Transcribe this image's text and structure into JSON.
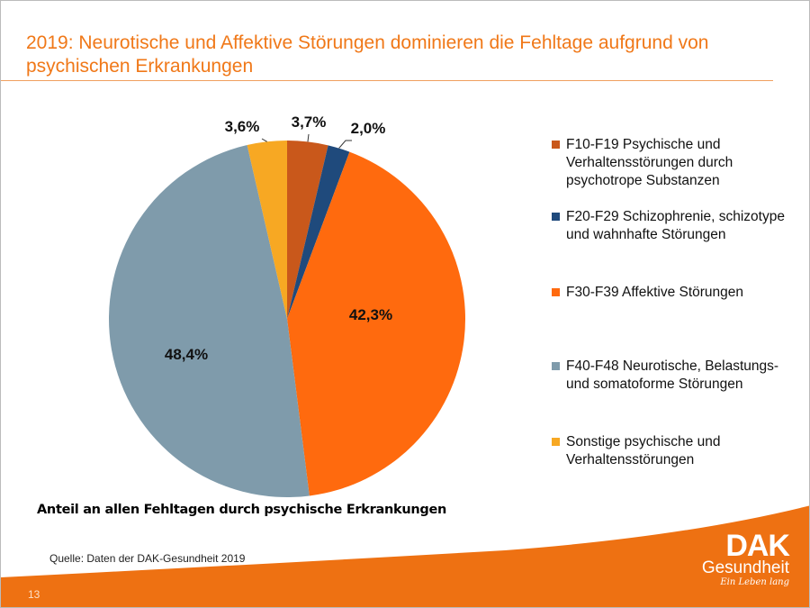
{
  "title": "2019: Neurotische und Affektive Störungen dominieren die Fehltage aufgrund von psychischen Erkrankungen",
  "chart_data": {
    "type": "pie",
    "title": "Anteil an allen Fehltagen durch psychische Erkrankungen",
    "legend_position": "right",
    "slices": [
      {
        "name": "F10-F19 Psychische und Verhaltensstörungen durch psychotrope Substanzen",
        "value": 3.7,
        "label": "3,7%",
        "color": "#C9581B"
      },
      {
        "name": "F20-F29 Schizophrenie, schizotype und wahnhafte Störungen",
        "value": 2.0,
        "label": "2,0%",
        "color": "#1F4A7C"
      },
      {
        "name": "F30-F39 Affektive Störungen",
        "value": 42.3,
        "label": "42,3%",
        "color": "#FF6A0E"
      },
      {
        "name": "F40-F48 Neurotische, Belastungs- und somatoforme Störungen",
        "value": 48.4,
        "label": "48,4%",
        "color": "#7F9BAB"
      },
      {
        "name": "Sonstige psychische und Verhaltensstörungen",
        "value": 3.6,
        "label": "3,6%",
        "color": "#F7A823"
      }
    ]
  },
  "source": "Quelle: Daten der DAK-Gesundheit 2019",
  "page_number": "13",
  "logo": {
    "brand": "DAK",
    "sub": "Gesundheit",
    "tagline": "Ein Leben lang"
  },
  "colors": {
    "accent": "#F07818",
    "footer": "#EE7112"
  }
}
